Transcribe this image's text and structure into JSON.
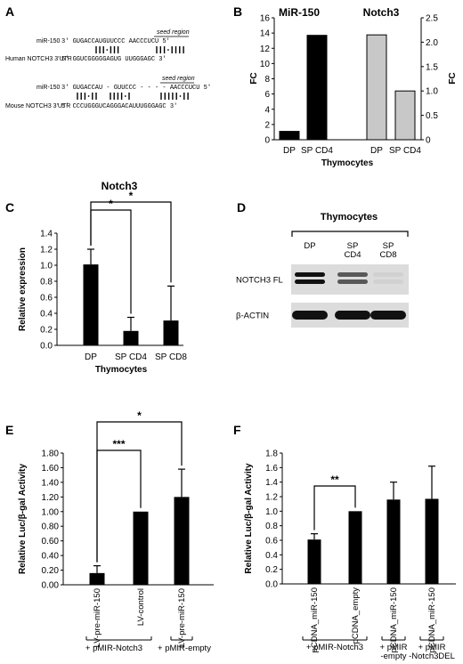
{
  "panel_letters": [
    "A",
    "B",
    "C",
    "D",
    "E",
    "F"
  ],
  "panelA": {
    "human": {
      "mir_label": "miR-150",
      "mir_seq": "3'   GUGACCAUGUUCCC  AACCCUCU  5'",
      "utr_label": "Human NOTCH3 3'UTR",
      "utr_seq": "5'   GGUCGGGGGAGUG UUGGGAGC  3'",
      "seed_label": "seed region"
    },
    "mouse": {
      "mir_label": "miR-150",
      "mir_seq": "3'   GUGACCAU - GUUCCC - - - - AACCCUCU  5'",
      "utr_label": "Mouse NOTCH3 3'UTR",
      "utr_seq": "5'  CCCUGGGUCAGGGACAUUUGGGAGC  3'",
      "seed_label": "seed region"
    }
  },
  "chart_data": [
    {
      "id": "B",
      "type": "bar",
      "title": "",
      "xlabel": "Thymocytes",
      "ylabel_left": "FC",
      "ylabel_right": "FC",
      "groups": [
        {
          "name": "MiR-150",
          "axis": "left",
          "ylim": [
            0,
            16
          ],
          "yticks": [
            0,
            2,
            4,
            6,
            8,
            10,
            12,
            14,
            16
          ],
          "color": "#000000",
          "categories": [
            "DP",
            "SP CD4"
          ],
          "values": [
            1.1,
            13.7
          ]
        },
        {
          "name": "Notch3",
          "axis": "right",
          "ylim": [
            0,
            2.5
          ],
          "yticks": [
            "0",
            "0.5",
            "1.0",
            "1.5",
            "2.0",
            "2.5"
          ],
          "color": "#c8c8c8",
          "categories": [
            "DP",
            "SP CD4"
          ],
          "values": [
            2.15,
            1.0
          ]
        }
      ]
    },
    {
      "id": "C",
      "type": "bar",
      "title": "Notch3",
      "xlabel": "Thymocytes",
      "ylabel": "Relative expression",
      "ylim": [
        0,
        1.4
      ],
      "yticks": [
        "0.0",
        "0.2",
        "0.4",
        "0.6",
        "0.8",
        "1.0",
        "1.2",
        "1.4"
      ],
      "categories": [
        "DP",
        "SP CD4",
        "SP CD8"
      ],
      "values": [
        1.01,
        0.18,
        0.31
      ],
      "errors": [
        0.19,
        0.17,
        0.43
      ],
      "significance": [
        {
          "from": 0,
          "to": 1,
          "label": "*"
        },
        {
          "from": 0,
          "to": 2,
          "label": "*"
        }
      ]
    },
    {
      "id": "E",
      "type": "bar",
      "title": "",
      "ylabel": "Relative Luc/β-gal Activity",
      "ylim": [
        0,
        1.8
      ],
      "yticks": [
        "0.00",
        "0.20",
        "0.40",
        "0.60",
        "0.80",
        "1.00",
        "1.20",
        "1.40",
        "1.60",
        "1.80"
      ],
      "categories": [
        "LV-pre-miR-150",
        "LV-control",
        "LV-pre-miR-150"
      ],
      "values": [
        0.16,
        1.0,
        1.2
      ],
      "errors": [
        0.1,
        0.0,
        0.38
      ],
      "groups": [
        {
          "label": "+ pMIR-Notch3",
          "from": 0,
          "to": 1
        },
        {
          "label": "+ pMIR-empty",
          "from": 2,
          "to": 2
        }
      ],
      "significance": [
        {
          "from": 0,
          "to": 1,
          "label": "***"
        },
        {
          "from": 0,
          "to": 2,
          "label": "*"
        }
      ]
    },
    {
      "id": "F",
      "type": "bar",
      "title": "",
      "ylabel": "Relative Luc/β-gal Activity",
      "ylim": [
        0,
        1.8
      ],
      "yticks": [
        "0.0",
        "0.2",
        "0.4",
        "0.6",
        "0.8",
        "1.0",
        "1.2",
        "1.4",
        "1.6",
        "1.8"
      ],
      "categories": [
        "pCDNA_miR-150",
        "pCDNA_empty",
        "pCDNA_miR-150",
        "pCDNA_miR-150"
      ],
      "values": [
        0.61,
        1.0,
        1.16,
        1.17
      ],
      "errors": [
        0.08,
        0.0,
        0.24,
        0.45
      ],
      "groups": [
        {
          "label": "+ pMIR-Notch3",
          "from": 0,
          "to": 1
        },
        {
          "label": "+ pMIR\n-empty",
          "from": 2,
          "to": 2
        },
        {
          "label": "+ pMIR\n-Notch3DEL",
          "from": 3,
          "to": 3
        }
      ],
      "significance": [
        {
          "from": 0,
          "to": 1,
          "label": "**"
        }
      ]
    }
  ],
  "panelD": {
    "title": "Thymocytes",
    "lanes": [
      "DP",
      "SP\nCD4",
      "SP\nCD8"
    ],
    "rows": [
      {
        "label": "NOTCH3 FL",
        "intensity": [
          1.0,
          0.65,
          0.05
        ],
        "double": true
      },
      {
        "label": "β-ACTIN",
        "intensity": [
          1.0,
          1.0,
          1.0
        ],
        "double": false
      }
    ]
  }
}
